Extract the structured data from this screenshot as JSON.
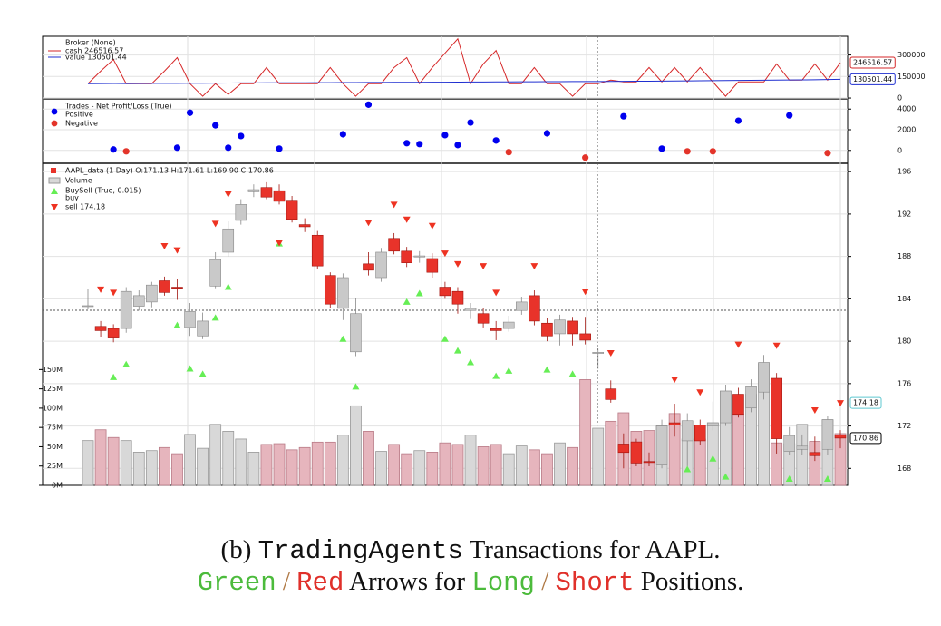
{
  "chart_data": [
    {
      "type": "line",
      "legend_title": "Broker (None)",
      "series": [
        {
          "name": "cash 246516.57",
          "color": "#d62728",
          "values": [
            100000,
            187500,
            268750,
            100000,
            100000,
            100000,
            187500,
            281250,
            100000,
            12500,
            100000,
            25000,
            100000,
            100000,
            212500,
            100000,
            100000,
            100000,
            100000,
            212500,
            100000,
            12500,
            100000,
            100000,
            212500,
            281250,
            100000,
            212500,
            312500,
            412500,
            100000,
            237500,
            331250,
            100000,
            100000,
            212500,
            100000,
            100000,
            12500,
            100000,
            100000,
            125000,
            112500,
            112500,
            212500,
            112500,
            212500,
            112500,
            212500,
            112500,
            12500,
            112500,
            112500,
            112500,
            237500,
            125000,
            125000,
            237500,
            125000,
            246516.57
          ]
        },
        {
          "name": "value 130501.44",
          "color": "#1f2fd0",
          "values": [
            100000,
            100400,
            101200,
            101000,
            101500,
            102000,
            102300,
            102600,
            103100,
            103000,
            103800,
            104500,
            105200,
            105600,
            105900,
            106100,
            106300,
            106500,
            106700,
            107000,
            107500,
            107800,
            108200,
            108600,
            109000,
            109300,
            109700,
            110000,
            110400,
            110900,
            111500,
            111900,
            112300,
            112600,
            113000,
            113400,
            113800,
            114100,
            114500,
            115000,
            115200,
            115800,
            116500,
            117000,
            117600,
            118300,
            119000,
            119600,
            120300,
            121000,
            121800,
            122500,
            123300,
            124000,
            124800,
            125700,
            126600,
            127600,
            128800,
            130501.44
          ]
        }
      ],
      "ylim": [
        -6000,
        430000
      ],
      "yticks": [
        0,
        150000,
        300000
      ]
    },
    {
      "type": "scatter",
      "title": "Trades - Net Profit/Loss (True)",
      "series": [
        {
          "name": "Positive",
          "color": "#0000ee",
          "values": [
            null,
            null,
            90,
            null,
            null,
            null,
            null,
            260,
            3650,
            null,
            2430,
            260,
            1390,
            null,
            null,
            170,
            null,
            null,
            null,
            null,
            1560,
            null,
            4430,
            null,
            null,
            700,
            610,
            null,
            1480,
            520,
            2700,
            null,
            960,
            null,
            null,
            null,
            1650,
            null,
            null,
            null,
            null,
            null,
            3300,
            null,
            null,
            170,
            null,
            null,
            null,
            null,
            null,
            2870,
            null,
            null,
            null,
            3390,
            null,
            null,
            null,
            null
          ]
        },
        {
          "name": "Negative",
          "color": "#e3342a",
          "values": [
            null,
            null,
            null,
            -90,
            null,
            null,
            null,
            null,
            null,
            null,
            null,
            null,
            null,
            null,
            null,
            null,
            null,
            null,
            null,
            null,
            null,
            null,
            null,
            null,
            null,
            null,
            null,
            null,
            null,
            null,
            null,
            null,
            null,
            -170,
            null,
            null,
            null,
            null,
            null,
            -700,
            null,
            null,
            null,
            null,
            null,
            null,
            null,
            -90,
            null,
            -90,
            null,
            null,
            null,
            null,
            null,
            null,
            null,
            null,
            -260,
            null
          ]
        }
      ],
      "ylim": [
        -1250,
        4900
      ],
      "yticks": [
        0,
        2000,
        4000
      ]
    },
    {
      "type": "candlestick",
      "name": "AAPL_data (1 Day) O:171.13 H:171.61 L:169.90 C:170.86",
      "up_color": "#c9c9c9",
      "down_color": "#e8332a",
      "open": [
        183.3,
        181.4,
        181.2,
        181.2,
        183.3,
        183.7,
        185.7,
        185.1,
        181.3,
        180.5,
        185.2,
        188.4,
        191.4,
        194.1,
        194.5,
        194.2,
        193.3,
        191.0,
        190.0,
        186.2,
        183.1,
        179.0,
        187.3,
        186.0,
        189.7,
        188.5,
        187.95,
        187.8,
        185.1,
        184.7,
        182.9,
        182.6,
        181.2,
        181.2,
        182.9,
        184.3,
        181.7,
        180.7,
        181.9,
        180.7,
        178.85,
        175.5,
        170.3,
        170.5,
        168.65,
        168.4,
        172.3,
        170.6,
        172.1,
        172.0,
        172.3,
        175.0,
        173.7,
        175.2,
        176.5,
        169.6,
        169.8,
        169.5,
        169.8,
        171.13
      ],
      "high": [
        184.9,
        181.9,
        181.6,
        185.1,
        184.8,
        185.6,
        186.1,
        185.9,
        183.6,
        182.7,
        188.4,
        191.3,
        193.4,
        194.8,
        195.0,
        194.8,
        193.7,
        191.6,
        190.4,
        186.5,
        186.4,
        184.1,
        188.4,
        188.8,
        190.2,
        188.9,
        188.5,
        188.3,
        185.6,
        185.1,
        183.6,
        183.1,
        181.9,
        182.4,
        184.2,
        184.8,
        182.2,
        182.5,
        182.3,
        182.3,
        179.3,
        176.3,
        171.3,
        170.8,
        169.5,
        172.6,
        174.1,
        173.2,
        172.6,
        174.3,
        175.9,
        175.6,
        176.4,
        178.7,
        177.0,
        171.9,
        171.2,
        171.0,
        172.9,
        171.61
      ],
      "low": [
        183.0,
        180.4,
        179.9,
        180.8,
        182.9,
        183.2,
        184.3,
        183.9,
        180.5,
        180.2,
        185.0,
        188.0,
        191.0,
        193.6,
        193.4,
        192.9,
        191.2,
        190.3,
        186.8,
        183.1,
        182.0,
        178.6,
        186.2,
        185.6,
        188.2,
        187.0,
        187.4,
        186.0,
        184.0,
        182.6,
        182.1,
        181.3,
        180.1,
        180.9,
        182.5,
        181.5,
        180.0,
        179.6,
        179.6,
        179.7,
        177.4,
        174.2,
        168.0,
        168.2,
        168.2,
        168.0,
        171.0,
        167.9,
        170.2,
        171.6,
        172.0,
        172.8,
        173.3,
        174.5,
        169.4,
        169.3,
        169.3,
        168.7,
        169.3,
        169.9
      ],
      "close": [
        183.35,
        181.0,
        180.3,
        184.7,
        184.3,
        185.3,
        184.6,
        185.0,
        182.8,
        181.9,
        187.7,
        190.6,
        192.9,
        194.3,
        193.6,
        193.2,
        191.5,
        190.8,
        187.1,
        183.5,
        186.0,
        182.6,
        186.7,
        188.4,
        188.5,
        187.4,
        188.05,
        186.5,
        184.3,
        183.5,
        183.1,
        181.7,
        181.0,
        181.8,
        183.7,
        181.9,
        180.5,
        182.0,
        180.7,
        180.1,
        178.95,
        174.5,
        169.5,
        168.5,
        168.55,
        172.0,
        172.1,
        172.5,
        170.6,
        172.3,
        175.3,
        173.1,
        175.7,
        178.0,
        170.8,
        171.1,
        170.1,
        169.2,
        172.6,
        170.86
      ],
      "ylim": [
        166.4,
        196.7
      ],
      "yticks": [
        168,
        172,
        176,
        180,
        184,
        188,
        192,
        196
      ],
      "volume": {
        "name": "Volume",
        "up_color": "#d8d8d8",
        "down_color": "#e6b5bd",
        "values": [
          58,
          72,
          62,
          58,
          43,
          45,
          49,
          41,
          66,
          48,
          79,
          70,
          60,
          43,
          53,
          54,
          46,
          49,
          56,
          56,
          65,
          103,
          70,
          44,
          53,
          41,
          45,
          43,
          55,
          53,
          65,
          50,
          53,
          41,
          51,
          46,
          41,
          55,
          49,
          137,
          74,
          83,
          94,
          70,
          71,
          77,
          93,
          60,
          60,
          81,
          122,
          92,
          118,
          158,
          55,
          54,
          79,
          57,
          85,
          67
        ],
        "ylim": [
          0,
          416
        ],
        "yticks": [
          {
            "value": 0,
            "label": "0M"
          },
          {
            "value": 25,
            "label": "25M"
          },
          {
            "value": 50,
            "label": "50M"
          },
          {
            "value": 75,
            "label": "75M"
          },
          {
            "value": 100,
            "label": "100M"
          },
          {
            "value": 125,
            "label": "125M"
          },
          {
            "value": 150,
            "label": "150M"
          }
        ]
      },
      "buysell": {
        "title": "BuySell (True, 0.015)",
        "buy": {
          "name": "buy",
          "color": "#66ee55",
          "values": [
            null,
            null,
            176.6,
            177.8,
            null,
            null,
            null,
            181.5,
            177.4,
            176.9,
            182.2,
            185.1,
            null,
            null,
            null,
            189.2,
            null,
            null,
            null,
            null,
            180.2,
            175.7,
            null,
            null,
            null,
            183.7,
            184.5,
            null,
            180.2,
            179.1,
            178.0,
            null,
            176.7,
            177.2,
            null,
            null,
            177.3,
            null,
            176.9,
            null,
            null,
            null,
            null,
            null,
            null,
            null,
            null,
            167.9,
            null,
            168.9,
            167.2,
            null,
            null,
            null,
            null,
            167.0,
            null,
            null,
            167.0,
            null
          ]
        },
        "sell": {
          "name": "sell 174.18",
          "color": "#ee3322",
          "values": [
            null,
            184.9,
            184.6,
            null,
            null,
            null,
            189.0,
            188.6,
            null,
            null,
            191.1,
            193.9,
            null,
            null,
            null,
            189.3,
            null,
            null,
            null,
            null,
            null,
            null,
            191.2,
            null,
            192.9,
            191.5,
            null,
            190.9,
            188.3,
            187.3,
            null,
            187.1,
            184.6,
            null,
            null,
            187.1,
            null,
            null,
            null,
            184.7,
            null,
            178.9,
            null,
            null,
            null,
            null,
            176.4,
            null,
            175.2,
            null,
            null,
            179.7,
            null,
            null,
            179.6,
            null,
            null,
            173.5,
            null,
            174.18
          ]
        }
      }
    }
  ],
  "caption": {
    "line1": [
      "(b)",
      "TradingAgents",
      "Transactions for AAPL."
    ],
    "line2": [
      "Green",
      "/",
      "Red",
      "Arrows for",
      "Long",
      "/",
      "Short",
      "Positions."
    ]
  }
}
